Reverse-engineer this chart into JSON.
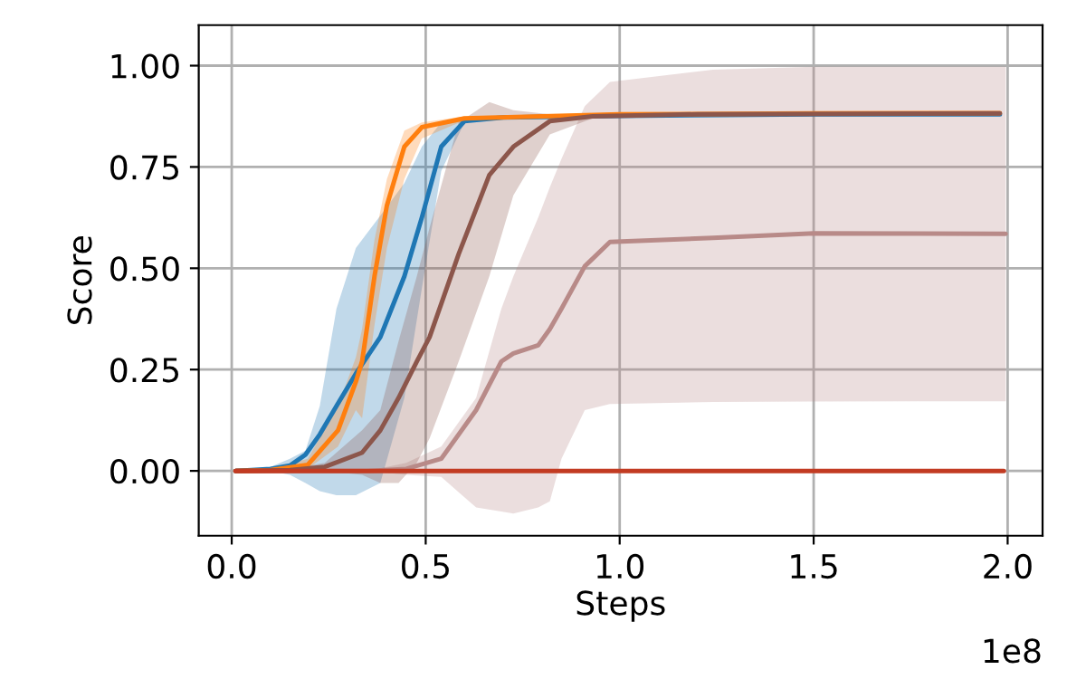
{
  "chart_data": {
    "type": "line",
    "xlabel": "Steps",
    "ylabel": "Score",
    "annotations": [
      "1e8"
    ],
    "xlim": [
      -0.085,
      2.09
    ],
    "ylim": [
      -0.16,
      1.1
    ],
    "xticks": [
      {
        "value": 0,
        "label": "0.0"
      },
      {
        "value": 0.5,
        "label": "0.5"
      },
      {
        "value": 1,
        "label": "1.0"
      },
      {
        "value": 1.5,
        "label": "1.5"
      },
      {
        "value": 2,
        "label": "2.0"
      }
    ],
    "yticks": [
      {
        "value": 0,
        "label": "0.00"
      },
      {
        "value": 0.25,
        "label": "0.25"
      },
      {
        "value": 0.5,
        "label": "0.50"
      },
      {
        "value": 0.75,
        "label": "0.75"
      },
      {
        "value": 1,
        "label": "1.00"
      }
    ],
    "grid": true,
    "series": [
      {
        "color": "#b88a88",
        "x": [
          0.01,
          0.35,
          0.45,
          0.54,
          0.63,
          0.695,
          0.726,
          0.79,
          0.82,
          0.85,
          0.91,
          0.975,
          1.24,
          1.5,
          1.995
        ],
        "values": [
          0,
          0,
          0.005,
          0.03,
          0.15,
          0.27,
          0.29,
          0.31,
          0.35,
          0.4,
          0.505,
          0.565,
          0.575,
          0.586,
          0.585
        ],
        "lower": [
          0,
          0,
          -0.01,
          -0.015,
          -0.09,
          -0.1,
          -0.105,
          -0.09,
          -0.075,
          0.03,
          0.15,
          0.165,
          0.17,
          0.171,
          0.172
        ],
        "upper": [
          0,
          0,
          0.02,
          0.06,
          0.18,
          0.4,
          0.48,
          0.625,
          0.7,
          0.77,
          0.9,
          0.96,
          0.99,
          0.997,
          0.997
        ]
      },
      {
        "color": "#1f77b4",
        "x": [
          0.01,
          0.1,
          0.15,
          0.19,
          0.227,
          0.27,
          0.32,
          0.383,
          0.445,
          0.49,
          0.54,
          0.6,
          0.7,
          1.0,
          1.5,
          1.98
        ],
        "values": [
          0,
          0.005,
          0.013,
          0.04,
          0.09,
          0.16,
          0.24,
          0.33,
          0.48,
          0.625,
          0.8,
          0.863,
          0.872,
          0.876,
          0.88,
          0.88
        ],
        "lower": [
          0,
          0,
          -0.01,
          -0.03,
          -0.05,
          -0.06,
          -0.06,
          -0.03,
          0.18,
          0.45,
          0.74,
          0.86,
          0.87,
          0.875,
          0.878,
          0.878
        ],
        "upper": [
          0,
          0.01,
          0.03,
          0.05,
          0.16,
          0.4,
          0.55,
          0.63,
          0.71,
          0.8,
          0.86,
          0.87,
          0.875,
          0.877,
          0.882,
          0.882
        ]
      },
      {
        "color": "#ff7f0e",
        "x": [
          0.01,
          0.1,
          0.196,
          0.274,
          0.32,
          0.336,
          0.368,
          0.4,
          0.445,
          0.49,
          0.6,
          1.0,
          1.5,
          1.98
        ],
        "values": [
          0,
          0.002,
          0.015,
          0.1,
          0.22,
          0.27,
          0.48,
          0.655,
          0.8,
          0.848,
          0.87,
          0.88,
          0.882,
          0.883
        ],
        "lower": [
          0,
          0,
          0.005,
          0.06,
          0.15,
          0.13,
          0.36,
          0.55,
          0.72,
          0.82,
          0.865,
          0.877,
          0.88,
          0.88
        ],
        "upper": [
          0,
          0.005,
          0.03,
          0.16,
          0.28,
          0.35,
          0.57,
          0.72,
          0.84,
          0.86,
          0.875,
          0.884,
          0.885,
          0.886
        ]
      },
      {
        "color": "#8c564b",
        "x": [
          0.01,
          0.15,
          0.24,
          0.336,
          0.383,
          0.43,
          0.477,
          0.51,
          0.585,
          0.664,
          0.726,
          0.82,
          0.93,
          1.2,
          1.98
        ],
        "values": [
          0,
          0.002,
          0.01,
          0.045,
          0.1,
          0.18,
          0.27,
          0.33,
          0.535,
          0.73,
          0.8,
          0.863,
          0.875,
          0.88,
          0.882
        ],
        "lower": [
          0,
          0,
          0,
          -0.01,
          -0.03,
          -0.03,
          0.02,
          0.08,
          0.27,
          0.48,
          0.68,
          0.83,
          0.87,
          0.877,
          0.879
        ],
        "upper": [
          0,
          0.005,
          0.02,
          0.1,
          0.15,
          0.32,
          0.48,
          0.6,
          0.86,
          0.91,
          0.89,
          0.88,
          0.88,
          0.882,
          0.884
        ]
      },
      {
        "color": "#c23b22",
        "x": [
          0.01,
          1.99
        ],
        "values": [
          0,
          0
        ]
      }
    ]
  }
}
